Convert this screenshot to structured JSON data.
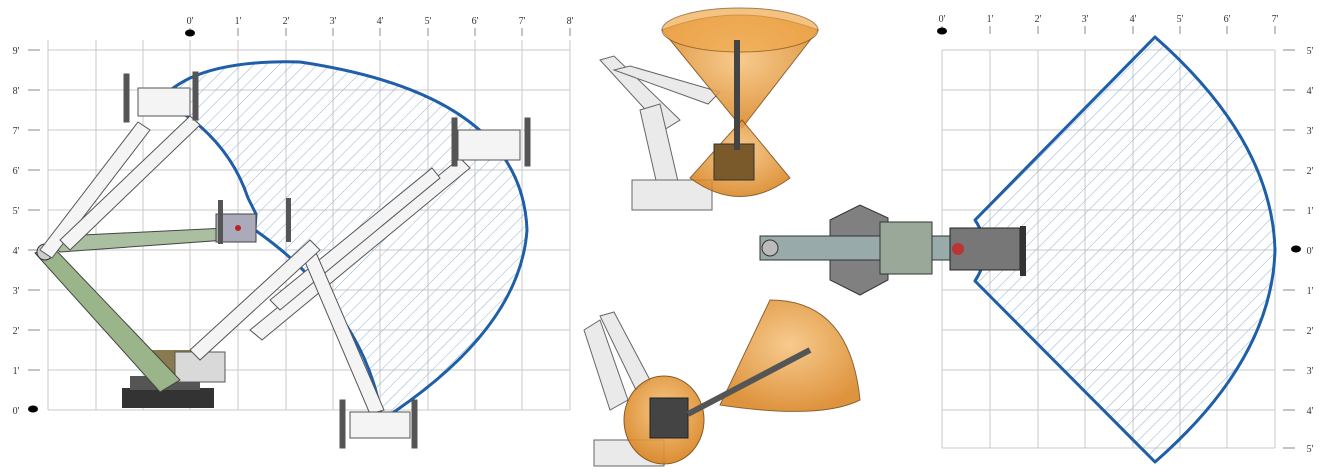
{
  "side_view": {
    "x_ticks": [
      "0'",
      "1'",
      "2'",
      "3'",
      "4'",
      "5'",
      "6'",
      "7'",
      "8'"
    ],
    "y_ticks": [
      "9'",
      "8'",
      "7'",
      "6'",
      "5'",
      "4'",
      "3'",
      "2'",
      "1'",
      "0'"
    ]
  },
  "top_view": {
    "x_ticks": [
      "0'",
      "1'",
      "2'",
      "3'",
      "4'",
      "5'",
      "6'",
      "7'"
    ],
    "y_ticks": [
      "5'",
      "4'",
      "3'",
      "2'",
      "1'",
      "0'",
      "1'",
      "2'",
      "3'",
      "4'",
      "5'"
    ]
  },
  "colors": {
    "envelope_stroke": "#1f5fa8",
    "hatch": "#8fb4d8",
    "grid": "#c8c8c8",
    "arm_green": "#9bb58a",
    "cone_orange": "#e8963a"
  }
}
